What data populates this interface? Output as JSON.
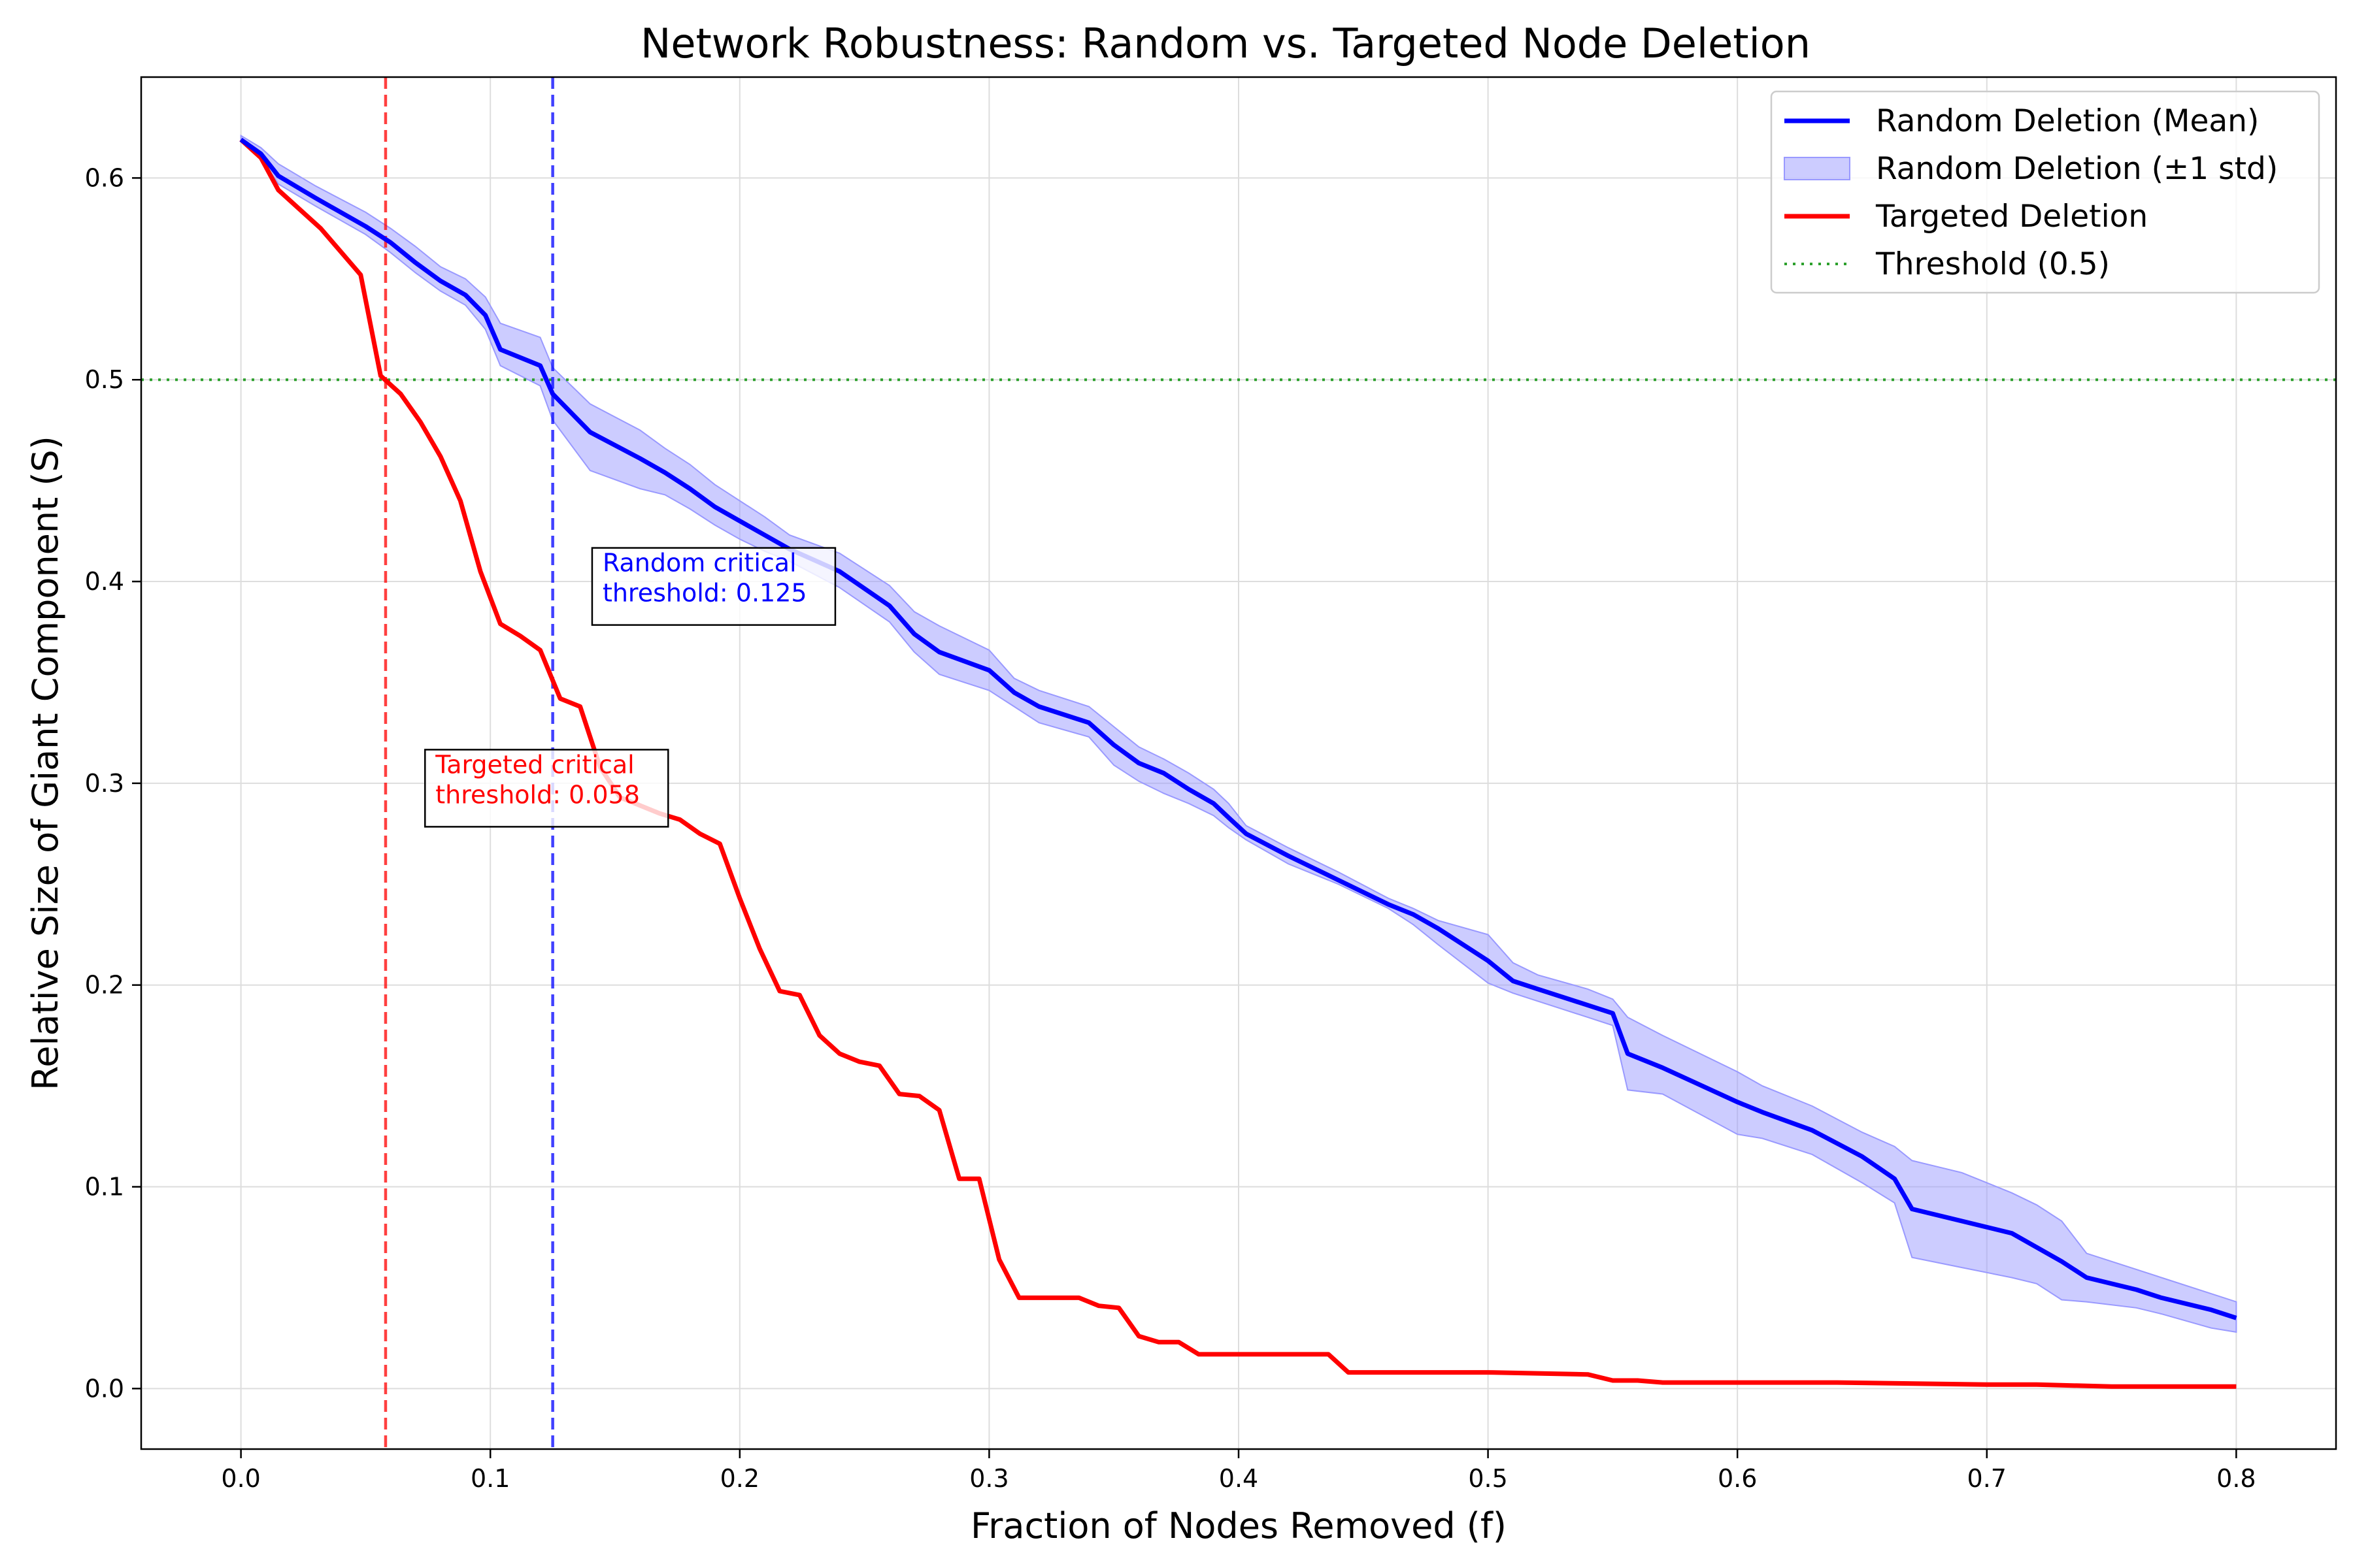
{
  "chart_data": {
    "type": "line",
    "title": "Network Robustness: Random vs. Targeted Node Deletion",
    "xlabel": "Fraction of Nodes Removed (f)",
    "ylabel": "Relative Size of Giant Component (S)",
    "xlim": [
      -0.04,
      0.84
    ],
    "ylim": [
      -0.03,
      0.65
    ],
    "xticks": [
      0.0,
      0.1,
      0.2,
      0.3,
      0.4,
      0.5,
      0.6,
      0.7,
      0.8
    ],
    "xtick_labels": [
      "0.0",
      "0.1",
      "0.2",
      "0.3",
      "0.4",
      "0.5",
      "0.6",
      "0.7",
      "0.8"
    ],
    "yticks": [
      0.0,
      0.1,
      0.2,
      0.3,
      0.4,
      0.5,
      0.6
    ],
    "ytick_labels": [
      "0.0",
      "0.1",
      "0.2",
      "0.3",
      "0.4",
      "0.5",
      "0.6"
    ],
    "grid": true,
    "legend_position": "top-right",
    "colors": {
      "random": "#0000ff",
      "random_band": "#9999ff",
      "targeted": "#ff0000",
      "threshold": "#2ca02c"
    },
    "series": [
      {
        "name": "Random Deletion (Mean)",
        "color": "#0000ff",
        "x": [
          0.0,
          0.008,
          0.015,
          0.03,
          0.05,
          0.06,
          0.07,
          0.08,
          0.09,
          0.098,
          0.104,
          0.12,
          0.125,
          0.14,
          0.16,
          0.17,
          0.18,
          0.19,
          0.2,
          0.21,
          0.22,
          0.24,
          0.26,
          0.27,
          0.28,
          0.3,
          0.31,
          0.32,
          0.34,
          0.35,
          0.36,
          0.37,
          0.38,
          0.39,
          0.396,
          0.403,
          0.42,
          0.44,
          0.46,
          0.47,
          0.48,
          0.5,
          0.51,
          0.52,
          0.54,
          0.55,
          0.556,
          0.57,
          0.6,
          0.61,
          0.63,
          0.65,
          0.663,
          0.67,
          0.69,
          0.71,
          0.72,
          0.73,
          0.74,
          0.76,
          0.77,
          0.79,
          0.8
        ],
        "y": [
          0.619,
          0.612,
          0.601,
          0.59,
          0.576,
          0.568,
          0.558,
          0.549,
          0.542,
          0.532,
          0.515,
          0.507,
          0.493,
          0.474,
          0.461,
          0.454,
          0.446,
          0.437,
          0.43,
          0.423,
          0.416,
          0.405,
          0.388,
          0.374,
          0.365,
          0.356,
          0.345,
          0.338,
          0.33,
          0.319,
          0.31,
          0.305,
          0.297,
          0.29,
          0.283,
          0.275,
          0.264,
          0.252,
          0.24,
          0.235,
          0.228,
          0.212,
          0.202,
          0.198,
          0.19,
          0.186,
          0.166,
          0.159,
          0.142,
          0.137,
          0.128,
          0.115,
          0.104,
          0.089,
          0.083,
          0.077,
          0.07,
          0.063,
          0.055,
          0.049,
          0.045,
          0.039,
          0.035
        ]
      },
      {
        "name": "Random Deletion (±1 std)",
        "color": "#9999ff",
        "x": [
          0.0,
          0.008,
          0.015,
          0.03,
          0.05,
          0.06,
          0.07,
          0.08,
          0.09,
          0.098,
          0.104,
          0.12,
          0.125,
          0.14,
          0.16,
          0.17,
          0.18,
          0.19,
          0.2,
          0.21,
          0.22,
          0.24,
          0.26,
          0.27,
          0.28,
          0.3,
          0.31,
          0.32,
          0.34,
          0.35,
          0.36,
          0.37,
          0.38,
          0.39,
          0.396,
          0.403,
          0.42,
          0.44,
          0.46,
          0.47,
          0.48,
          0.5,
          0.51,
          0.52,
          0.54,
          0.55,
          0.556,
          0.57,
          0.6,
          0.61,
          0.63,
          0.65,
          0.663,
          0.67,
          0.69,
          0.71,
          0.72,
          0.73,
          0.74,
          0.76,
          0.77,
          0.79,
          0.8
        ],
        "lower": [
          0.619,
          0.61,
          0.597,
          0.586,
          0.572,
          0.563,
          0.553,
          0.544,
          0.537,
          0.525,
          0.507,
          0.497,
          0.48,
          0.455,
          0.446,
          0.443,
          0.436,
          0.428,
          0.421,
          0.415,
          0.41,
          0.397,
          0.38,
          0.365,
          0.354,
          0.346,
          0.338,
          0.33,
          0.323,
          0.309,
          0.301,
          0.295,
          0.29,
          0.284,
          0.278,
          0.272,
          0.26,
          0.25,
          0.238,
          0.23,
          0.22,
          0.201,
          0.196,
          0.192,
          0.184,
          0.18,
          0.148,
          0.146,
          0.126,
          0.124,
          0.116,
          0.102,
          0.092,
          0.065,
          0.06,
          0.055,
          0.052,
          0.044,
          0.043,
          0.04,
          0.037,
          0.03,
          0.028
        ],
        "upper": [
          0.621,
          0.615,
          0.607,
          0.596,
          0.583,
          0.575,
          0.566,
          0.556,
          0.55,
          0.541,
          0.528,
          0.521,
          0.506,
          0.488,
          0.475,
          0.466,
          0.458,
          0.448,
          0.44,
          0.432,
          0.423,
          0.414,
          0.398,
          0.385,
          0.378,
          0.366,
          0.352,
          0.346,
          0.338,
          0.328,
          0.318,
          0.312,
          0.305,
          0.297,
          0.29,
          0.279,
          0.268,
          0.256,
          0.243,
          0.238,
          0.232,
          0.225,
          0.211,
          0.205,
          0.198,
          0.193,
          0.184,
          0.175,
          0.157,
          0.15,
          0.14,
          0.127,
          0.12,
          0.113,
          0.107,
          0.097,
          0.091,
          0.083,
          0.067,
          0.059,
          0.055,
          0.047,
          0.043
        ]
      },
      {
        "name": "Targeted Deletion",
        "color": "#ff0000",
        "x": [
          0.0,
          0.008,
          0.015,
          0.032,
          0.048,
          0.056,
          0.064,
          0.072,
          0.08,
          0.088,
          0.096,
          0.104,
          0.112,
          0.12,
          0.128,
          0.136,
          0.144,
          0.152,
          0.16,
          0.168,
          0.176,
          0.184,
          0.192,
          0.2,
          0.208,
          0.216,
          0.224,
          0.232,
          0.24,
          0.248,
          0.256,
          0.264,
          0.272,
          0.28,
          0.288,
          0.296,
          0.304,
          0.312,
          0.32,
          0.328,
          0.336,
          0.344,
          0.352,
          0.36,
          0.368,
          0.376,
          0.384,
          0.392,
          0.4,
          0.408,
          0.416,
          0.424,
          0.436,
          0.444,
          0.452,
          0.5,
          0.54,
          0.55,
          0.56,
          0.57,
          0.6,
          0.64,
          0.7,
          0.72,
          0.75,
          0.8
        ],
        "y": [
          0.619,
          0.61,
          0.594,
          0.575,
          0.552,
          0.502,
          0.493,
          0.479,
          0.462,
          0.44,
          0.405,
          0.379,
          0.373,
          0.366,
          0.342,
          0.338,
          0.308,
          0.293,
          0.289,
          0.285,
          0.282,
          0.275,
          0.27,
          0.243,
          0.218,
          0.197,
          0.195,
          0.175,
          0.166,
          0.162,
          0.16,
          0.146,
          0.145,
          0.138,
          0.104,
          0.104,
          0.064,
          0.045,
          0.045,
          0.045,
          0.045,
          0.041,
          0.04,
          0.026,
          0.023,
          0.023,
          0.017,
          0.017,
          0.017,
          0.017,
          0.017,
          0.017,
          0.017,
          0.008,
          0.008,
          0.008,
          0.007,
          0.004,
          0.004,
          0.003,
          0.003,
          0.003,
          0.002,
          0.002,
          0.001,
          0.001
        ]
      },
      {
        "name": "Threshold (0.5)",
        "color": "#2ca02c",
        "y": 0.5
      }
    ],
    "critical_lines": [
      {
        "x": 0.058,
        "color": "#ff0000"
      },
      {
        "x": 0.125,
        "color": "#0000ff"
      }
    ],
    "annotations": [
      {
        "lines": [
          "Random critical",
          "threshold: 0.125"
        ],
        "x": 0.145,
        "y": 0.405,
        "color": "#0000ff"
      },
      {
        "lines": [
          "Targeted critical",
          "threshold: 0.058"
        ],
        "x": 0.078,
        "y": 0.305,
        "color": "#ff0000"
      }
    ]
  }
}
